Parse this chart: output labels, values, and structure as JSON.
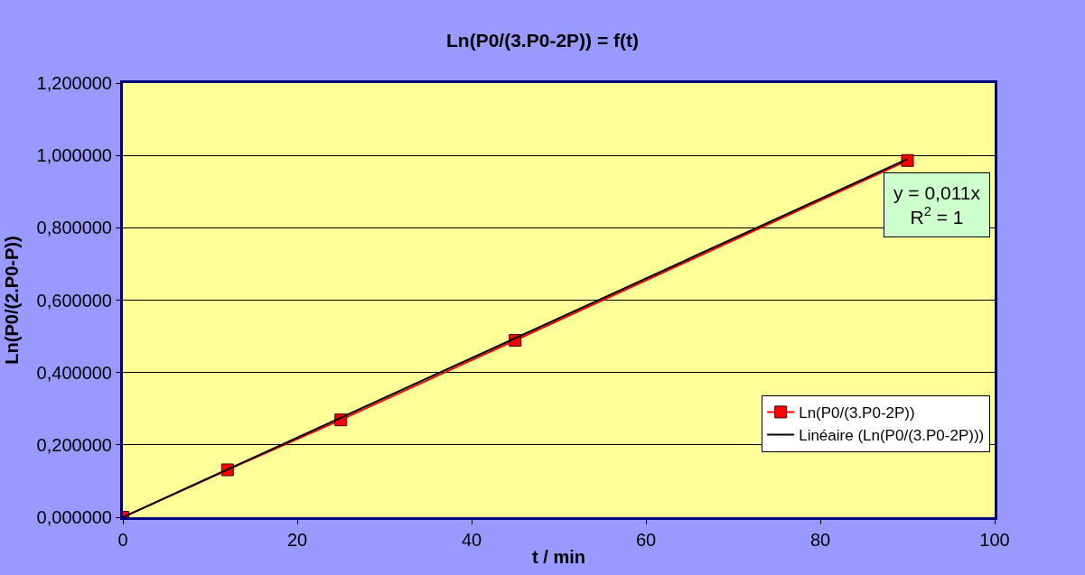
{
  "chart_data": {
    "type": "line",
    "title": "Ln(P0/(3.P0-2P)) = f(t)",
    "xlabel": "t / min",
    "ylabel": "Ln(P0/(2.P0-P))",
    "x": [
      0,
      12,
      25,
      45,
      90
    ],
    "series": [
      {
        "name": "Ln(P0/(3.P0-2P))",
        "color": "#ff0000",
        "values": [
          0,
          0.131,
          0.269,
          0.489,
          0.986
        ],
        "marker": "square"
      },
      {
        "name": "Linéaire (Ln(P0/(3.P0-2P)))",
        "color": "#000000",
        "x": [
          0,
          90
        ],
        "values": [
          0,
          0.99
        ],
        "marker": "none"
      }
    ],
    "xlim": [
      0,
      100
    ],
    "xticks": [
      0,
      20,
      40,
      60,
      80,
      100
    ],
    "ylim": [
      0,
      1.2
    ],
    "yticks": [
      {
        "value": 0,
        "label": "0,000000"
      },
      {
        "value": 0.2,
        "label": "0,200000"
      },
      {
        "value": 0.4,
        "label": "0,400000"
      },
      {
        "value": 0.6,
        "label": "0,600000"
      },
      {
        "value": 0.8,
        "label": "0,800000"
      },
      {
        "value": 1.0,
        "label": "1,000000"
      },
      {
        "value": 1.2,
        "label": "1,200000"
      }
    ],
    "annotations": [
      "y = 0,011x\nR$^{2}$ = 1"
    ],
    "grid": "y",
    "legend": "bottom right",
    "line_style": "solid"
  }
}
